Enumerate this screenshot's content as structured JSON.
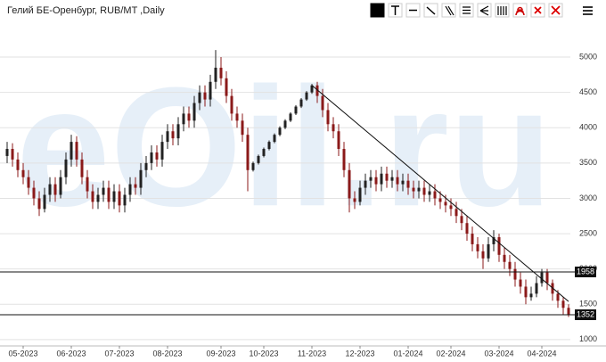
{
  "chart_data": {
    "type": "candlestick",
    "title": "Гелий БЕ-Оренбург, RUB/MT ,Daily",
    "watermark": "eOil.ru",
    "up_color": "#222222",
    "down_color": "#8b1a1a",
    "grid": true,
    "ylim": [
      910,
      5430
    ],
    "yticks": [
      1000,
      1500,
      2000,
      2500,
      3000,
      3500,
      4000,
      4500,
      5000
    ],
    "xticks": [
      {
        "value": 3,
        "label": "05-2023"
      },
      {
        "value": 12,
        "label": "06-2023"
      },
      {
        "value": 21,
        "label": "07-2023"
      },
      {
        "value": 30,
        "label": "08-2023"
      },
      {
        "value": 40,
        "label": "09-2023"
      },
      {
        "value": 48,
        "label": "10-2023"
      },
      {
        "value": 57,
        "label": "11-2023"
      },
      {
        "value": 66,
        "label": "12-2023"
      },
      {
        "value": 75,
        "label": "01-2024"
      },
      {
        "value": 83,
        "label": "02-2024"
      },
      {
        "value": 92,
        "label": "03-2024"
      },
      {
        "value": 100,
        "label": "04-2024"
      }
    ],
    "price_lines": [
      1958,
      1352
    ],
    "trend_line": {
      "from": [
        57,
        4600
      ],
      "to": [
        105,
        1540
      ]
    },
    "candles": [
      [
        3600,
        3800,
        3500,
        3700
      ],
      [
        3700,
        3780,
        3450,
        3550
      ],
      [
        3550,
        3650,
        3300,
        3400
      ],
      [
        3400,
        3500,
        3200,
        3300
      ],
      [
        3300,
        3400,
        3050,
        3150
      ],
      [
        3150,
        3250,
        2900,
        3000
      ],
      [
        3000,
        3100,
        2750,
        2850
      ],
      [
        2850,
        3150,
        2800,
        3050
      ],
      [
        3050,
        3300,
        2950,
        3200
      ],
      [
        3200,
        3300,
        2950,
        3050
      ],
      [
        3050,
        3400,
        3000,
        3300
      ],
      [
        3300,
        3650,
        3200,
        3550
      ],
      [
        3550,
        3900,
        3450,
        3800
      ],
      [
        3800,
        3880,
        3450,
        3550
      ],
      [
        3550,
        3650,
        3200,
        3300
      ],
      [
        3300,
        3400,
        3000,
        3100
      ],
      [
        3100,
        3200,
        2850,
        2950
      ],
      [
        2950,
        3150,
        2850,
        3050
      ],
      [
        3050,
        3250,
        2950,
        3150
      ],
      [
        3150,
        3250,
        2850,
        2950
      ],
      [
        2950,
        3200,
        2850,
        3100
      ],
      [
        3100,
        3200,
        2800,
        2900
      ],
      [
        2900,
        3150,
        2800,
        3050
      ],
      [
        3050,
        3300,
        2950,
        3200
      ],
      [
        3200,
        3300,
        3050,
        3150
      ],
      [
        3150,
        3500,
        3050,
        3400
      ],
      [
        3400,
        3600,
        3300,
        3500
      ],
      [
        3500,
        3750,
        3400,
        3650
      ],
      [
        3650,
        3750,
        3450,
        3550
      ],
      [
        3550,
        3900,
        3450,
        3800
      ],
      [
        3800,
        4050,
        3700,
        3950
      ],
      [
        3950,
        4050,
        3750,
        3850
      ],
      [
        3850,
        4150,
        3750,
        4050
      ],
      [
        4050,
        4300,
        3950,
        4200
      ],
      [
        4200,
        4300,
        4000,
        4100
      ],
      [
        4100,
        4450,
        4000,
        4350
      ],
      [
        4350,
        4600,
        4250,
        4500
      ],
      [
        4500,
        4600,
        4300,
        4400
      ],
      [
        4400,
        4750,
        4300,
        4650
      ],
      [
        4650,
        5100,
        4550,
        4850
      ],
      [
        4850,
        5000,
        4600,
        4700
      ],
      [
        4700,
        4800,
        4350,
        4450
      ],
      [
        4450,
        4550,
        4100,
        4200
      ],
      [
        4200,
        4300,
        4000,
        4100
      ],
      [
        4100,
        4200,
        3800,
        3900
      ],
      [
        3900,
        4000,
        3100,
        3400
      ],
      [
        3400,
        3520,
        3380,
        3500
      ],
      [
        3500,
        3620,
        3480,
        3600
      ],
      [
        3600,
        3720,
        3580,
        3700
      ],
      [
        3700,
        3820,
        3680,
        3800
      ],
      [
        3800,
        3920,
        3780,
        3900
      ],
      [
        3900,
        4020,
        3880,
        4000
      ],
      [
        4000,
        4120,
        3980,
        4100
      ],
      [
        4100,
        4220,
        4080,
        4200
      ],
      [
        4200,
        4320,
        4180,
        4300
      ],
      [
        4300,
        4420,
        4280,
        4400
      ],
      [
        4400,
        4520,
        4380,
        4500
      ],
      [
        4500,
        4620,
        4480,
        4600
      ],
      [
        4600,
        4650,
        4350,
        4450
      ],
      [
        4450,
        4550,
        4150,
        4250
      ],
      [
        4250,
        4350,
        3950,
        4050
      ],
      [
        4050,
        4150,
        3850,
        3950
      ],
      [
        3950,
        4050,
        3600,
        3700
      ],
      [
        3700,
        3800,
        3300,
        3400
      ],
      [
        3400,
        3500,
        2800,
        3000
      ],
      [
        3000,
        3100,
        2850,
        2950
      ],
      [
        2950,
        3250,
        2900,
        3150
      ],
      [
        3150,
        3350,
        3050,
        3250
      ],
      [
        3250,
        3400,
        3150,
        3300
      ],
      [
        3300,
        3400,
        3100,
        3200
      ],
      [
        3200,
        3450,
        3100,
        3350
      ],
      [
        3350,
        3450,
        3150,
        3250
      ],
      [
        3250,
        3400,
        3150,
        3300
      ],
      [
        3300,
        3400,
        3100,
        3200
      ],
      [
        3200,
        3350,
        3100,
        3250
      ],
      [
        3250,
        3350,
        3050,
        3150
      ],
      [
        3150,
        3250,
        3000,
        3100
      ],
      [
        3100,
        3250,
        3000,
        3150
      ],
      [
        3150,
        3250,
        2950,
        3050
      ],
      [
        3050,
        3200,
        2950,
        3100
      ],
      [
        3100,
        3200,
        2900,
        3000
      ],
      [
        3000,
        3100,
        2850,
        2950
      ],
      [
        2950,
        3050,
        2800,
        2900
      ],
      [
        2900,
        3000,
        2750,
        2850
      ],
      [
        2850,
        2950,
        2650,
        2750
      ],
      [
        2750,
        2850,
        2550,
        2650
      ],
      [
        2650,
        2750,
        2400,
        2500
      ],
      [
        2500,
        2600,
        2250,
        2350
      ],
      [
        2350,
        2450,
        2150,
        2250
      ],
      [
        2250,
        2350,
        2000,
        2150
      ],
      [
        2150,
        2450,
        2100,
        2350
      ],
      [
        2350,
        2550,
        2250,
        2450
      ],
      [
        2450,
        2500,
        2100,
        2200
      ],
      [
        2200,
        2300,
        2000,
        2100
      ],
      [
        2100,
        2200,
        1900,
        2000
      ],
      [
        2000,
        2100,
        1750,
        1850
      ],
      [
        1850,
        1950,
        1650,
        1750
      ],
      [
        1750,
        1850,
        1500,
        1600
      ],
      [
        1600,
        1750,
        1550,
        1650
      ],
      [
        1650,
        1900,
        1600,
        1800
      ],
      [
        1800,
        2000,
        1750,
        1950
      ],
      [
        1950,
        2000,
        1700,
        1800
      ],
      [
        1800,
        1850,
        1550,
        1650
      ],
      [
        1650,
        1700,
        1450,
        1550
      ],
      [
        1550,
        1600,
        1350,
        1450
      ],
      [
        1450,
        1500,
        1320,
        1352
      ]
    ]
  }
}
